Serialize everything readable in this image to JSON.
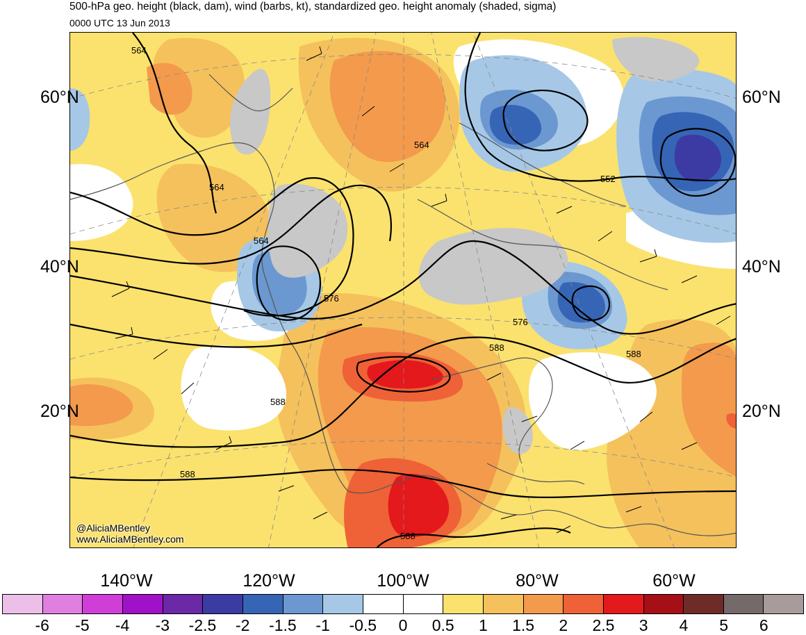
{
  "title": "500-hPa geo. height (black, dam), wind (barbs, kt), standardized geo. height anomaly (shaded, sigma)",
  "subtitle": "0000 UTC 13 Jun 2013",
  "credits": {
    "twitter": "@AliciaMBentley",
    "website": "www.AliciaMBentley.com"
  },
  "lat_labels": [
    "60°N",
    "40°N",
    "20°N"
  ],
  "lon_labels": [
    "140°W",
    "120°W",
    "100°W",
    "80°W",
    "60°W"
  ],
  "contour_labels": [
    "564",
    "564",
    "564",
    "564",
    "552",
    "576",
    "576",
    "588",
    "588",
    "588",
    "588",
    "588"
  ],
  "colorbar": {
    "labels": [
      "-6",
      "-5",
      "-4",
      "-3",
      "-2.5",
      "-2",
      "-1.5",
      "-1",
      "-0.5",
      "0",
      "0.5",
      "1",
      "1.5",
      "2",
      "2.5",
      "3",
      "4",
      "5",
      "6"
    ],
    "colors": [
      "#ecbfe8",
      "#e07fe0",
      "#cf3fd7",
      "#a012c8",
      "#6b28a7",
      "#3c3ba3",
      "#3665b5",
      "#6b98d0",
      "#a6c8e6",
      "#ffffff",
      "#ffffff",
      "#fbe26e",
      "#f5c15c",
      "#f39a4c",
      "#ef6136",
      "#e3191c",
      "#a50f15",
      "#6e2b28",
      "#756a6a",
      "#a89b9b"
    ]
  },
  "colors": {
    "yellow": "#fbe26e",
    "light_orange": "#f5c15c",
    "orange": "#f39a4c",
    "red_orange": "#ef6136",
    "red": "#e3191c",
    "light_blue": "#a6c8e6",
    "mid_blue": "#6b98d0",
    "blue": "#3665b5",
    "dark_blue": "#3c3ba3",
    "gray": "#c8c8c8",
    "coast": "#555555",
    "contour": "#000000"
  }
}
